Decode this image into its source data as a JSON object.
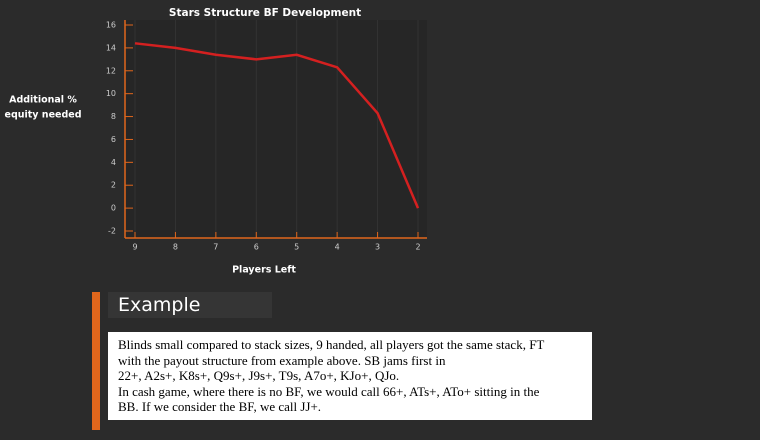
{
  "chart_data": {
    "type": "line",
    "title": "Stars Structure BF Development",
    "y_label": [
      "Additional %",
      "equity needed"
    ],
    "x_label": "Players Left",
    "categories": [
      "9",
      "8",
      "7",
      "6",
      "5",
      "4",
      "3",
      "2"
    ],
    "values": [
      14.4,
      14.0,
      13.4,
      13.0,
      13.4,
      12.3,
      8.3,
      0.0
    ],
    "color": "#d42020",
    "axis_color": "#e0661c",
    "ylim": [
      -2,
      16
    ],
    "yticks": [
      -2,
      0,
      2,
      4,
      6,
      8,
      10,
      12,
      14,
      16
    ],
    "grid": true
  },
  "example": {
    "heading": "Example",
    "lines": [
      "Blinds small compared to stack sizes, 9 handed, all players got the same stack, FT",
      "with the payout structure from example above. SB jams first in",
      "22+, A2s+, K8s+, Q9s+, J9s+, T9s, A7o+, KJo+, QJo.",
      "In cash game, where there is no BF, we would call 66+, ATs+, ATo+ sitting in the",
      "BB. If we consider the BF, we call JJ+."
    ]
  }
}
